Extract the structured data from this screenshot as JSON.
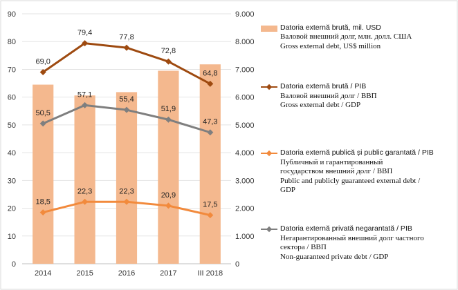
{
  "chart_data": {
    "type": "bar+line",
    "categories": [
      "2014",
      "2015",
      "2016",
      "2017",
      "III 2018"
    ],
    "left_axis": {
      "ylim": [
        0,
        90
      ],
      "ticks": [
        "0",
        "10",
        "20",
        "30",
        "40",
        "50",
        "60",
        "70",
        "80",
        "90"
      ]
    },
    "right_axis": {
      "ylim": [
        0,
        9000
      ],
      "ticks": [
        "0",
        "1.000",
        "2.000",
        "3.000",
        "4.000",
        "5.000",
        "6.000",
        "7.000",
        "8.000",
        "9.000"
      ]
    },
    "grid": true,
    "legend_placement": "right",
    "series": [
      {
        "name_lines": [
          "Datoria externă brută, mil. USD",
          "Валовой внешний долг, млн. долл. США",
          "Gross external debt, US$ million"
        ],
        "type": "bar",
        "axis": "right",
        "color": "#f4b88e",
        "values": [
          6450,
          6060,
          6180,
          6950,
          7180
        ],
        "labels": [
          "",
          "",
          "",
          "",
          ""
        ]
      },
      {
        "name_lines": [
          "Datoria externă brută / PIB",
          "Валовой внешний долг / ВВП",
          "Gross external debt / GDP"
        ],
        "type": "line",
        "axis": "left",
        "color": "#9e4a10",
        "values": [
          69.0,
          79.4,
          77.8,
          72.8,
          64.8
        ],
        "labels": [
          "69,0",
          "79,4",
          "77,8",
          "72,8",
          "64,8"
        ]
      },
      {
        "name_lines": [
          "Datoria externă publică și public garantată / PIB",
          "Публичный и гарантированный",
          "государством внешний долг / ВВП",
          "Public and publicly guaranteed external debt /",
          "GDP"
        ],
        "type": "line",
        "axis": "left",
        "color": "#f28a3c",
        "values": [
          18.5,
          22.3,
          22.3,
          20.9,
          17.5
        ],
        "labels": [
          "18,5",
          "22,3",
          "22,3",
          "20,9",
          "17,5"
        ]
      },
      {
        "name_lines": [
          "Datoria externă privată negarantată / PIB",
          "Негарантированный внешний долг частного",
          "сектора / ВВП",
          "Non-guaranteed private debt / GDP"
        ],
        "type": "line",
        "axis": "left",
        "color": "#7f7f7f",
        "values": [
          50.5,
          57.1,
          55.4,
          51.9,
          47.3
        ],
        "labels": [
          "50,5",
          "57,1",
          "55,4",
          "51,9",
          "47,3"
        ]
      }
    ]
  }
}
